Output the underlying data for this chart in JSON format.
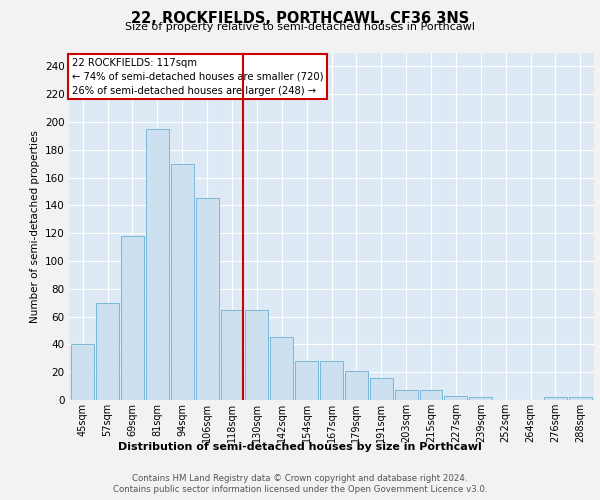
{
  "title": "22, ROCKFIELDS, PORTHCAWL, CF36 3NS",
  "subtitle": "Size of property relative to semi-detached houses in Porthcawl",
  "xlabel": "Distribution of semi-detached houses by size in Porthcawl",
  "ylabel": "Number of semi-detached properties",
  "categories": [
    "45sqm",
    "57sqm",
    "69sqm",
    "81sqm",
    "94sqm",
    "106sqm",
    "118sqm",
    "130sqm",
    "142sqm",
    "154sqm",
    "167sqm",
    "179sqm",
    "191sqm",
    "203sqm",
    "215sqm",
    "227sqm",
    "239sqm",
    "252sqm",
    "264sqm",
    "276sqm",
    "288sqm"
  ],
  "values": [
    40,
    70,
    118,
    195,
    170,
    145,
    65,
    65,
    45,
    28,
    28,
    21,
    16,
    7,
    7,
    3,
    2,
    0,
    0,
    2,
    2
  ],
  "bar_color": "#cce0f0",
  "bar_edge_color": "#7ab8d8",
  "marker_index": 6,
  "marker_label": "22 ROCKFIELDS: 117sqm",
  "annotation_line1": "← 74% of semi-detached houses are smaller (720)",
  "annotation_line2": "26% of semi-detached houses are larger (248) →",
  "annotation_box_color": "#ffffff",
  "annotation_box_edge": "#cc0000",
  "marker_line_color": "#cc0000",
  "ylim": [
    0,
    250
  ],
  "yticks": [
    0,
    20,
    40,
    60,
    80,
    100,
    120,
    140,
    160,
    180,
    200,
    220,
    240
  ],
  "plot_bg": "#ddeaf5",
  "fig_bg": "#f2f2f2",
  "footer1": "Contains HM Land Registry data © Crown copyright and database right 2024.",
  "footer2": "Contains public sector information licensed under the Open Government Licence v3.0."
}
